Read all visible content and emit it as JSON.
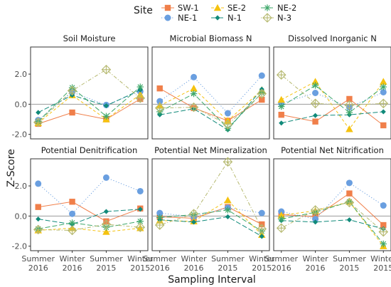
{
  "chart_data": {
    "type": "line",
    "ylabel": "Z-Score",
    "xlabel": "Sampling Interval",
    "legend": {
      "title": "Site",
      "placement": "top"
    },
    "categories": [
      [
        "Summer",
        "2016"
      ],
      [
        "Winter",
        "2016"
      ],
      [
        "Summer",
        "2015"
      ],
      [
        "Winter",
        "2015"
      ]
    ],
    "ylim": [
      -2.3,
      3.8
    ],
    "yticks": [
      2.0,
      0.0,
      -2.0
    ],
    "ytick_labels": [
      "2.0",
      "0.0",
      "-2.0"
    ],
    "series_meta": [
      {
        "name": "SW-1",
        "color": "#f07f4a",
        "marker": "square",
        "dash": "solid"
      },
      {
        "name": "NE-1",
        "color": "#6a9fe0",
        "marker": "circle",
        "dash": "dotted"
      },
      {
        "name": "SE-2",
        "color": "#f5c20f",
        "marker": "triangle",
        "dash": "dashed"
      },
      {
        "name": "N-1",
        "color": "#108a7a",
        "marker": "diamond",
        "dash": "longdash"
      },
      {
        "name": "NE-2",
        "color": "#3fa86a",
        "marker": "asterisk",
        "dash": "longdash"
      },
      {
        "name": "N-3",
        "color": "#b5b86e",
        "marker": "diamond-plus",
        "dash": "dotdash"
      }
    ],
    "panels": [
      {
        "title": "Soil Moisture",
        "series": [
          {
            "name": "SW-1",
            "values": [
              -1.3,
              -0.55,
              -1.0,
              0.35
            ]
          },
          {
            "name": "NE-1",
            "values": [
              -1.05,
              0.8,
              -0.05,
              0.85
            ]
          },
          {
            "name": "SE-2",
            "values": [
              -1.25,
              0.6,
              -1.0,
              0.65
            ]
          },
          {
            "name": "N-1",
            "values": [
              -0.55,
              0.6,
              -0.1,
              0.95
            ]
          },
          {
            "name": "NE-2",
            "values": [
              -1.15,
              1.1,
              -0.8,
              1.15
            ]
          },
          {
            "name": "N-3",
            "values": [
              -1.2,
              0.9,
              2.3,
              0.4
            ]
          }
        ]
      },
      {
        "title": "Microbial Biomass N",
        "series": [
          {
            "name": "SW-1",
            "values": [
              1.05,
              -0.25,
              -1.1,
              0.3
            ]
          },
          {
            "name": "NE-1",
            "values": [
              0.2,
              1.8,
              -0.6,
              1.9
            ]
          },
          {
            "name": "SE-2",
            "values": [
              -0.1,
              1.05,
              -1.1,
              0.95
            ]
          },
          {
            "name": "N-1",
            "values": [
              -0.7,
              -0.3,
              -1.7,
              1.0
            ]
          },
          {
            "name": "NE-2",
            "values": [
              -0.5,
              0.7,
              -1.6,
              0.75
            ]
          },
          {
            "name": "N-3",
            "values": [
              -0.25,
              -0.2,
              -1.35,
              0.7
            ]
          }
        ]
      },
      {
        "title": "Dissolved Inorganic N",
        "series": [
          {
            "name": "SW-1",
            "values": [
              -0.7,
              -1.15,
              0.35,
              -1.4
            ]
          },
          {
            "name": "NE-1",
            "values": [
              0.05,
              0.75,
              -0.2,
              0.8
            ]
          },
          {
            "name": "SE-2",
            "values": [
              0.3,
              1.5,
              -1.65,
              1.5
            ]
          },
          {
            "name": "N-1",
            "values": [
              -1.25,
              -0.75,
              -0.7,
              -0.5
            ]
          },
          {
            "name": "NE-2",
            "values": [
              -0.15,
              1.25,
              -0.55,
              1.15
            ]
          },
          {
            "name": "N-3",
            "values": [
              1.95,
              0.05,
              -0.05,
              0.05
            ]
          }
        ]
      },
      {
        "title": "Potential Denitrification",
        "series": [
          {
            "name": "SW-1",
            "values": [
              0.6,
              0.95,
              -0.35,
              0.5
            ]
          },
          {
            "name": "NE-1",
            "values": [
              2.15,
              0.15,
              2.55,
              1.65
            ]
          },
          {
            "name": "SE-2",
            "values": [
              -0.95,
              -0.8,
              -1.05,
              -0.8
            ]
          },
          {
            "name": "N-1",
            "values": [
              -0.2,
              -0.55,
              0.3,
              0.45
            ]
          },
          {
            "name": "NE-2",
            "values": [
              -0.85,
              -0.45,
              -0.75,
              -0.35
            ]
          },
          {
            "name": "N-3",
            "values": [
              -0.9,
              -0.95,
              -0.55,
              -0.75
            ]
          }
        ]
      },
      {
        "title": "Potential Net Mineralization",
        "series": [
          {
            "name": "SW-1",
            "values": [
              -0.05,
              -0.15,
              0.6,
              -0.55
            ]
          },
          {
            "name": "NE-1",
            "values": [
              0.2,
              -0.05,
              0.55,
              0.2
            ]
          },
          {
            "name": "SE-2",
            "values": [
              -0.3,
              -0.35,
              1.05,
              -1.25
            ]
          },
          {
            "name": "N-1",
            "values": [
              -0.25,
              -0.4,
              -0.05,
              -1.35
            ]
          },
          {
            "name": "NE-2",
            "values": [
              -0.1,
              0.1,
              0.4,
              -1.0
            ]
          },
          {
            "name": "N-3",
            "values": [
              -0.6,
              0.15,
              3.6,
              -0.85
            ]
          }
        ]
      },
      {
        "title": "Potential Net Nitrification",
        "series": [
          {
            "name": "SW-1",
            "values": [
              0.1,
              -0.05,
              1.5,
              -0.6
            ]
          },
          {
            "name": "NE-1",
            "values": [
              0.3,
              -0.2,
              2.2,
              0.7
            ]
          },
          {
            "name": "SE-2",
            "values": [
              0.05,
              0.35,
              0.95,
              -2.0
            ]
          },
          {
            "name": "N-1",
            "values": [
              -0.3,
              -0.4,
              -0.25,
              -0.85
            ]
          },
          {
            "name": "NE-2",
            "values": [
              -0.2,
              0.25,
              0.95,
              -1.85
            ]
          },
          {
            "name": "N-3",
            "values": [
              -0.8,
              0.4,
              0.9,
              -1.05
            ]
          }
        ]
      }
    ]
  }
}
